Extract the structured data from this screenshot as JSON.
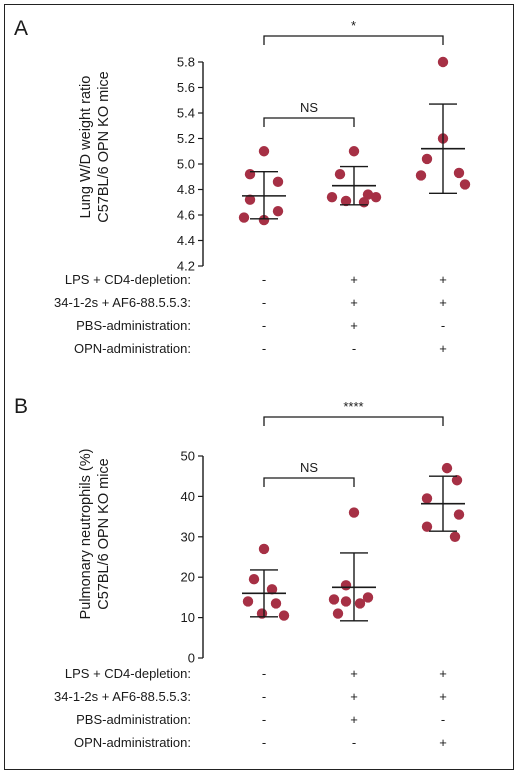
{
  "panels": [
    {
      "letter": "A"
    },
    {
      "letter": "B"
    }
  ],
  "chart_data": [
    {
      "type": "scatter",
      "panel": "A",
      "ylabel_line1": "Lung W/D weight ratio",
      "ylabel_line2": "C57BL/6 OPN KO mice",
      "ylim": [
        4.2,
        5.8
      ],
      "yticks": [
        "4.2",
        "4.4",
        "4.6",
        "4.8",
        "5.0",
        "5.2",
        "5.4",
        "5.6",
        "5.8"
      ],
      "groups": [
        {
          "values": [
            5.1,
            4.92,
            4.86,
            4.72,
            4.63,
            4.58,
            4.56
          ],
          "mean": 4.75,
          "sd_upper": 4.94,
          "sd_lower": 4.57
        },
        {
          "values": [
            5.1,
            4.92,
            4.76,
            4.74,
            4.74,
            4.71,
            4.7
          ],
          "mean": 4.83,
          "sd_upper": 4.98,
          "sd_lower": 4.68
        },
        {
          "values": [
            5.8,
            5.2,
            5.04,
            4.93,
            4.91,
            4.84
          ],
          "mean": 5.12,
          "sd_upper": 5.47,
          "sd_lower": 4.77
        }
      ],
      "comparisons": [
        {
          "from": 0,
          "to": 1,
          "label": "NS"
        },
        {
          "from": 0,
          "to": 2,
          "label": "*"
        }
      ],
      "conditions": [
        {
          "label": "LPS + CD4-depletion:",
          "symbols": [
            "-",
            "+",
            "+"
          ]
        },
        {
          "label": "34-1-2s + AF6-88.5.5.3:",
          "symbols": [
            "-",
            "+",
            "+"
          ]
        },
        {
          "label": "PBS-administration:",
          "symbols": [
            "-",
            "+",
            "-"
          ]
        },
        {
          "label": "OPN-administration:",
          "symbols": [
            "-",
            "-",
            "+"
          ]
        }
      ]
    },
    {
      "type": "scatter",
      "panel": "B",
      "ylabel_line1": "Pulmonary neutrophils (%)",
      "ylabel_line2": "C57BL/6 OPN KO mice",
      "ylim": [
        0,
        50
      ],
      "yticks": [
        "0",
        "10",
        "20",
        "30",
        "40",
        "50"
      ],
      "groups": [
        {
          "values": [
            27,
            19.5,
            17,
            14,
            13.5,
            11,
            10.5
          ],
          "mean": 16,
          "sd_upper": 21.8,
          "sd_lower": 10.2
        },
        {
          "values": [
            36,
            18,
            15,
            14.5,
            14,
            13.5,
            11
          ],
          "mean": 17.5,
          "sd_upper": 26,
          "sd_lower": 9.2
        },
        {
          "values": [
            47,
            44,
            39.5,
            35.5,
            32.5,
            30
          ],
          "mean": 38.2,
          "sd_upper": 45,
          "sd_lower": 31.4
        }
      ],
      "comparisons": [
        {
          "from": 0,
          "to": 1,
          "label": "NS"
        },
        {
          "from": 0,
          "to": 2,
          "label": "****"
        }
      ],
      "conditions": [
        {
          "label": "LPS + CD4-depletion:",
          "symbols": [
            "-",
            "+",
            "+"
          ]
        },
        {
          "label": "34-1-2s + AF6-88.5.5.3:",
          "symbols": [
            "-",
            "+",
            "+"
          ]
        },
        {
          "label": "PBS-administration:",
          "symbols": [
            "-",
            "+",
            "-"
          ]
        },
        {
          "label": "OPN-administration:",
          "symbols": [
            "-",
            "-",
            "+"
          ]
        }
      ]
    }
  ],
  "colors": {
    "point": "#a63045",
    "line": "#1a1a1a"
  }
}
